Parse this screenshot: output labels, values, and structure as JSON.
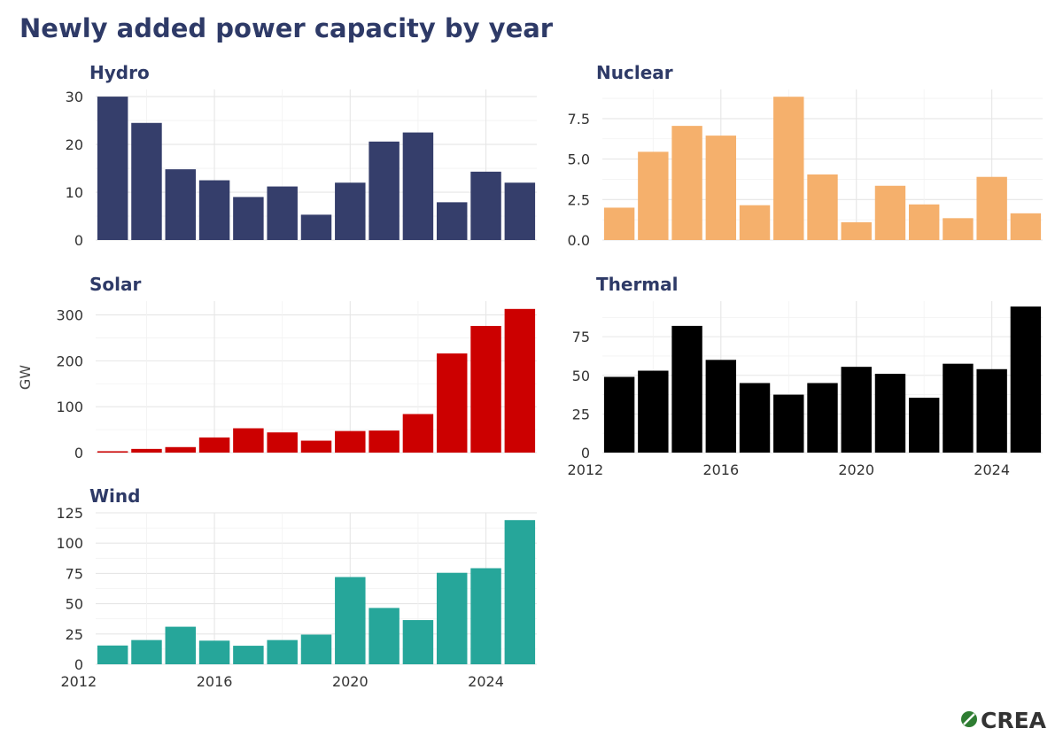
{
  "title": "Newly added power capacity by year",
  "ylabel": "GW",
  "logo_text": "CREA",
  "colors": {
    "title": "#2e3a67",
    "grid": "#e5e5e5",
    "tick_text": "#333333",
    "logo_icon": "#2e7d32",
    "logo_text": "#333333"
  },
  "chart_data": [
    {
      "type": "bar",
      "title": "Hydro",
      "color": "#353e6b",
      "x": [
        2013,
        2014,
        2015,
        2016,
        2017,
        2018,
        2019,
        2020,
        2021,
        2022,
        2023,
        2024,
        2025
      ],
      "values": [
        30.0,
        24.5,
        14.8,
        12.5,
        9.0,
        11.2,
        5.3,
        12.0,
        20.6,
        22.5,
        7.9,
        14.3,
        12.0
      ],
      "ylim": [
        0,
        31.5
      ],
      "yticks": [
        0,
        10,
        20,
        30
      ],
      "ytick_labels": [
        "0",
        "10",
        "20",
        "30"
      ],
      "xlim": [
        2012.5,
        2025.5
      ],
      "xticks": [
        2016,
        2020,
        2024
      ],
      "xtick_labels": [],
      "grid": true
    },
    {
      "type": "bar",
      "title": "Nuclear",
      "color": "#f5b06c",
      "x": [
        2013,
        2014,
        2015,
        2016,
        2017,
        2018,
        2019,
        2020,
        2021,
        2022,
        2023,
        2024,
        2025
      ],
      "values": [
        2.0,
        5.45,
        7.05,
        6.45,
        2.15,
        8.85,
        4.05,
        1.1,
        3.35,
        2.2,
        1.35,
        3.9,
        1.65
      ],
      "ylim": [
        0,
        9.3
      ],
      "yticks": [
        0,
        2.5,
        5,
        7.5
      ],
      "ytick_labels": [
        "0.0",
        "2.5",
        "5.0",
        "7.5"
      ],
      "xlim": [
        2012.5,
        2025.5
      ],
      "xticks": [
        2016,
        2020,
        2024
      ],
      "xtick_labels": [],
      "grid": true
    },
    {
      "type": "bar",
      "title": "Solar",
      "color": "#cc0000",
      "x": [
        2013,
        2014,
        2015,
        2016,
        2017,
        2018,
        2019,
        2020,
        2021,
        2022,
        2023,
        2024,
        2025
      ],
      "values": [
        3,
        8,
        12,
        33,
        53,
        44,
        26,
        47,
        48,
        84,
        216,
        276,
        313
      ],
      "ylim": [
        0,
        330
      ],
      "yticks": [
        0,
        100,
        200,
        300
      ],
      "ytick_labels": [
        "0",
        "100",
        "200",
        "300"
      ],
      "xlim": [
        2012.5,
        2025.5
      ],
      "xticks": [
        2016,
        2020,
        2024
      ],
      "xtick_labels": [],
      "grid": true
    },
    {
      "type": "bar",
      "title": "Thermal",
      "color": "#000000",
      "x": [
        2013,
        2014,
        2015,
        2016,
        2017,
        2018,
        2019,
        2020,
        2021,
        2022,
        2023,
        2024,
        2025
      ],
      "values": [
        49,
        53,
        82,
        60,
        45,
        37.5,
        45,
        55.5,
        51,
        35.5,
        57.5,
        54,
        94.5
      ],
      "ylim": [
        0,
        98
      ],
      "yticks": [
        0,
        25,
        50,
        75
      ],
      "ytick_labels": [
        "0",
        "25",
        "50",
        "75"
      ],
      "xlim": [
        2012.5,
        2025.5
      ],
      "xticks": [
        2012,
        2016,
        2020,
        2024
      ],
      "xtick_labels": [
        "2012",
        "2016",
        "2020",
        "2024"
      ],
      "grid": true
    },
    {
      "type": "bar",
      "title": "Wind",
      "color": "#26a69a",
      "x": [
        2013,
        2014,
        2015,
        2016,
        2017,
        2018,
        2019,
        2020,
        2021,
        2022,
        2023,
        2024,
        2025
      ],
      "values": [
        15.5,
        20,
        31,
        19.5,
        15.3,
        20,
        24.5,
        72,
        46.5,
        36.5,
        75.5,
        79.3,
        119
      ],
      "ylim": [
        0,
        125
      ],
      "yticks": [
        0,
        25,
        50,
        75,
        100,
        125
      ],
      "ytick_labels": [
        "0",
        "25",
        "50",
        "75",
        "100",
        "125"
      ],
      "xlim": [
        2012.5,
        2025.5
      ],
      "xticks": [
        2012,
        2016,
        2020,
        2024
      ],
      "xtick_labels": [
        "2012",
        "2016",
        "2020",
        "2024"
      ],
      "grid": true
    }
  ]
}
